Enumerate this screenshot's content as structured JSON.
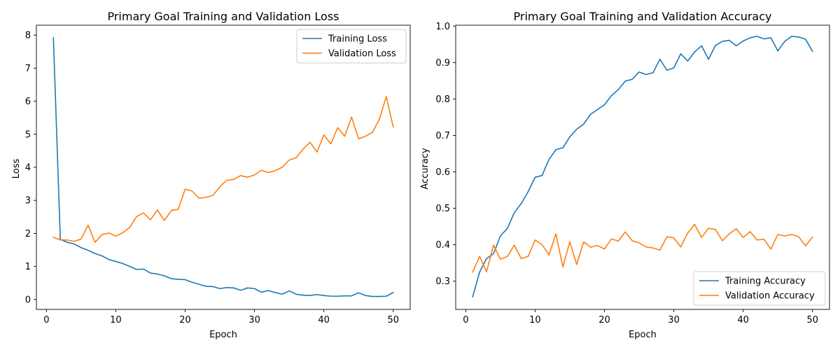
{
  "chart_data": [
    {
      "type": "line",
      "title": "Primary Goal Training and Validation Loss",
      "xlabel": "Epoch",
      "ylabel": "Loss",
      "xlim": [
        -1.45,
        52.45
      ],
      "ylim": [
        -0.3,
        8.3
      ],
      "xticks": [
        0,
        10,
        20,
        30,
        40,
        50
      ],
      "yticks": [
        0,
        1,
        2,
        3,
        4,
        5,
        6,
        7,
        8
      ],
      "tick_decimals": 0,
      "legend_position": "top-right",
      "grid": false,
      "x": [
        1,
        2,
        3,
        4,
        5,
        6,
        7,
        8,
        9,
        10,
        11,
        12,
        13,
        14,
        15,
        16,
        17,
        18,
        19,
        20,
        21,
        22,
        23,
        24,
        25,
        26,
        27,
        28,
        29,
        30,
        31,
        32,
        33,
        34,
        35,
        36,
        37,
        38,
        39,
        40,
        41,
        42,
        43,
        44,
        45,
        46,
        47,
        48,
        49,
        50
      ],
      "series": [
        {
          "name": "Training Loss",
          "color": "#1f77b4",
          "values": [
            7.92,
            1.82,
            1.73,
            1.68,
            1.57,
            1.49,
            1.39,
            1.32,
            1.21,
            1.15,
            1.09,
            1.0,
            0.91,
            0.92,
            0.8,
            0.77,
            0.72,
            0.63,
            0.61,
            0.6,
            0.52,
            0.46,
            0.4,
            0.39,
            0.33,
            0.36,
            0.35,
            0.28,
            0.35,
            0.33,
            0.22,
            0.27,
            0.21,
            0.16,
            0.26,
            0.16,
            0.13,
            0.12,
            0.15,
            0.12,
            0.1,
            0.1,
            0.11,
            0.11,
            0.2,
            0.12,
            0.09,
            0.09,
            0.1,
            0.21
          ]
        },
        {
          "name": "Validation Loss",
          "color": "#ff7f0e",
          "values": [
            1.88,
            1.8,
            1.8,
            1.76,
            1.83,
            2.25,
            1.73,
            1.96,
            2.01,
            1.92,
            2.02,
            2.18,
            2.51,
            2.62,
            2.41,
            2.71,
            2.39,
            2.69,
            2.73,
            3.34,
            3.28,
            3.06,
            3.09,
            3.15,
            3.41,
            3.61,
            3.63,
            3.75,
            3.7,
            3.77,
            3.91,
            3.84,
            3.9,
            4.0,
            4.22,
            4.29,
            4.55,
            4.76,
            4.46,
            4.98,
            4.71,
            5.2,
            4.94,
            5.52,
            4.86,
            4.94,
            5.06,
            5.45,
            6.14,
            5.22
          ]
        }
      ]
    },
    {
      "type": "line",
      "title": "Primary Goal Training and Validation Accuracy",
      "xlabel": "Epoch",
      "ylabel": "Accuracy",
      "xlim": [
        -1.45,
        52.45
      ],
      "ylim": [
        0.2225,
        1.0025
      ],
      "xticks": [
        0,
        10,
        20,
        30,
        40,
        50
      ],
      "yticks": [
        0.3,
        0.4,
        0.5,
        0.6,
        0.7,
        0.8,
        0.9,
        1.0
      ],
      "tick_decimals": 1,
      "legend_position": "bottom-right",
      "grid": false,
      "x": [
        1,
        2,
        3,
        4,
        5,
        6,
        7,
        8,
        9,
        10,
        11,
        12,
        13,
        14,
        15,
        16,
        17,
        18,
        19,
        20,
        21,
        22,
        23,
        24,
        25,
        26,
        27,
        28,
        29,
        30,
        31,
        32,
        33,
        34,
        35,
        36,
        37,
        38,
        39,
        40,
        41,
        42,
        43,
        44,
        45,
        46,
        47,
        48,
        49,
        50
      ],
      "series": [
        {
          "name": "Training Accuracy",
          "color": "#1f77b4",
          "values": [
            0.257,
            0.325,
            0.362,
            0.375,
            0.424,
            0.445,
            0.488,
            0.513,
            0.546,
            0.585,
            0.59,
            0.634,
            0.661,
            0.666,
            0.696,
            0.717,
            0.731,
            0.758,
            0.771,
            0.784,
            0.809,
            0.826,
            0.849,
            0.854,
            0.874,
            0.867,
            0.872,
            0.909,
            0.879,
            0.885,
            0.924,
            0.904,
            0.929,
            0.946,
            0.909,
            0.947,
            0.958,
            0.961,
            0.946,
            0.959,
            0.968,
            0.972,
            0.965,
            0.968,
            0.932,
            0.958,
            0.972,
            0.97,
            0.964,
            0.931
          ]
        },
        {
          "name": "Validation Accuracy",
          "color": "#ff7f0e",
          "values": [
            0.325,
            0.368,
            0.326,
            0.399,
            0.36,
            0.368,
            0.399,
            0.362,
            0.368,
            0.413,
            0.4,
            0.372,
            0.43,
            0.339,
            0.408,
            0.346,
            0.408,
            0.393,
            0.398,
            0.388,
            0.416,
            0.41,
            0.435,
            0.411,
            0.405,
            0.394,
            0.391,
            0.385,
            0.422,
            0.419,
            0.394,
            0.432,
            0.456,
            0.42,
            0.445,
            0.442,
            0.411,
            0.43,
            0.444,
            0.42,
            0.436,
            0.413,
            0.415,
            0.388,
            0.428,
            0.424,
            0.428,
            0.422,
            0.397,
            0.421
          ]
        }
      ]
    }
  ]
}
